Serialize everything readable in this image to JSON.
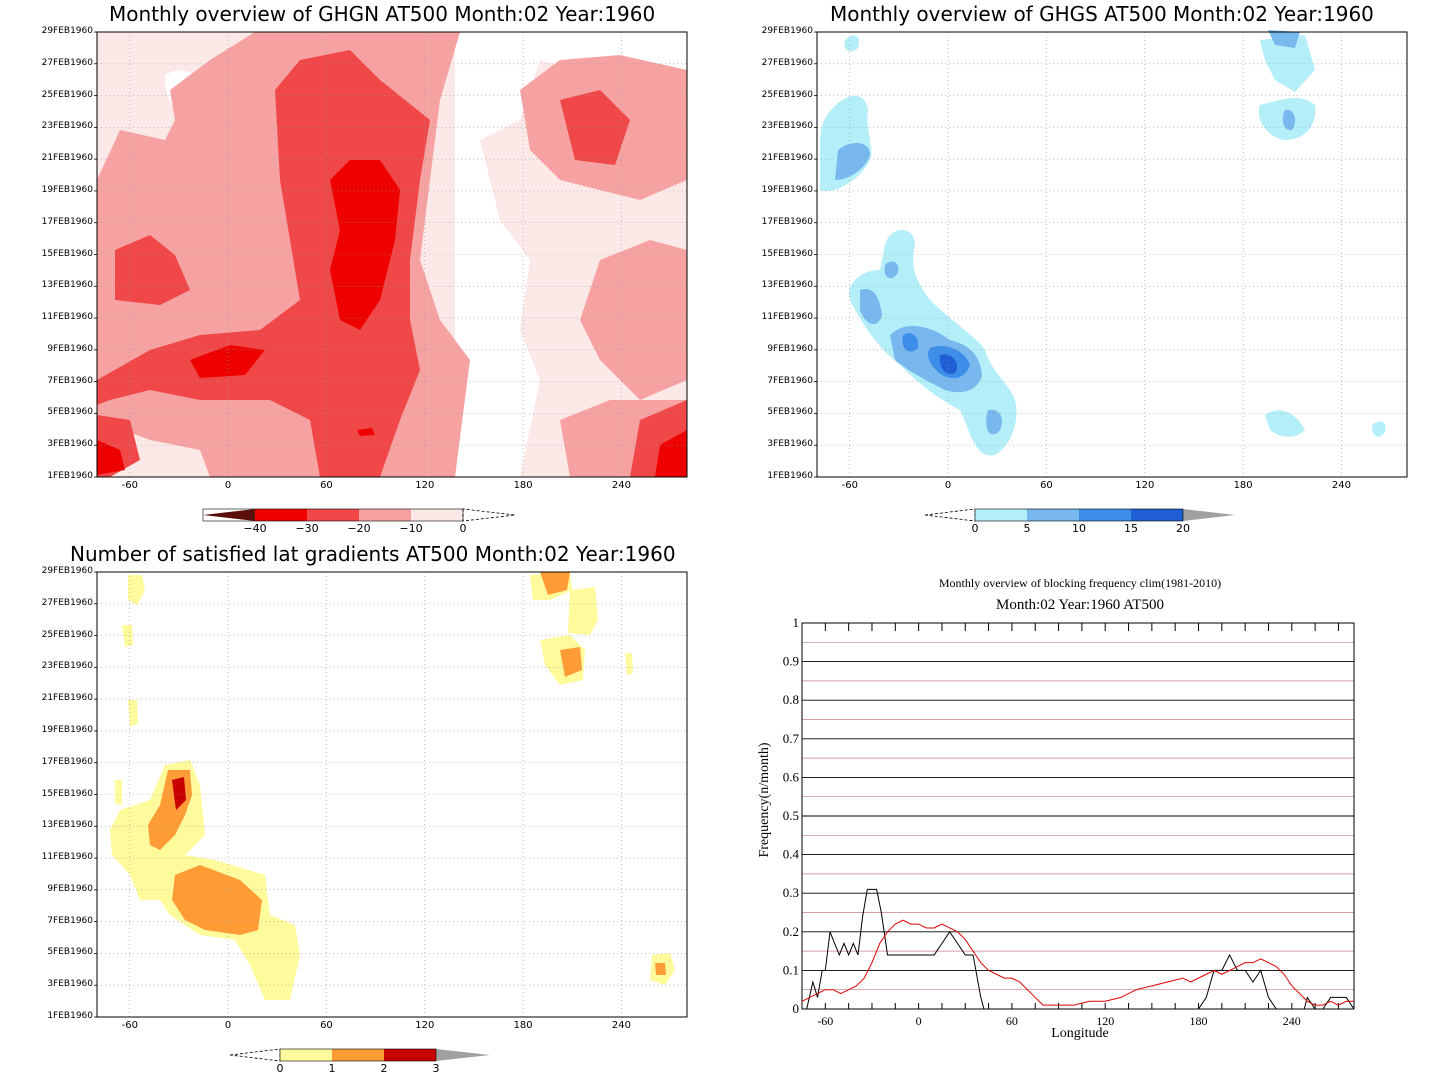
{
  "panels": {
    "ghgn": {
      "title": "Monthly overview of GHGN AT500 Month:02 Year:1960",
      "colorbar_labels": [
        "−40",
        "−30",
        "−20",
        "−10",
        "0"
      ],
      "colors": [
        "#5a0f0a",
        "#ee0000",
        "#f04848",
        "#f7a2a2",
        "#fde8e8"
      ]
    },
    "ghgs": {
      "title": "Monthly overview of GHGS AT500 Month:02 Year:1960",
      "colorbar_labels": [
        "0",
        "5",
        "10",
        "15",
        "20"
      ],
      "colors": [
        "#b4eef8",
        "#78b8ee",
        "#3c8ee8",
        "#1f5ed4",
        "#a0a0a0"
      ]
    },
    "gradients": {
      "title": "Number of satisfied lat gradients AT500 Month:02 Year:1960",
      "colorbar_labels": [
        "0",
        "1",
        "2",
        "3"
      ],
      "colors": [
        "#fffa9c",
        "#ff9c36",
        "#c80000",
        "#a0a0a0"
      ]
    },
    "frequency": {
      "title": "Monthly overview of blocking frequency clim(1981-2010)",
      "subtitle": "Month:02 Year:1960  AT500",
      "xlabel": "Longitude",
      "ylabel": "Frequency(n/month)"
    }
  },
  "date_ticks": [
    "1FEB1960",
    "3FEB1960",
    "5FEB1960",
    "7FEB1960",
    "9FEB1960",
    "11FEB1960",
    "13FEB1960",
    "15FEB1960",
    "17FEB1960",
    "19FEB1960",
    "21FEB1960",
    "23FEB1960",
    "25FEB1960",
    "27FEB1960",
    "29FEB1960"
  ],
  "lon_ticks": [
    "-60",
    "0",
    "60",
    "120",
    "180",
    "240"
  ],
  "chart_data": [
    {
      "type": "heatmap",
      "title": "Monthly overview of GHGN AT500 Month:02 Year:1960",
      "xlim": [
        -80,
        280
      ],
      "ylim": [
        "1FEB1960",
        "29FEB1960"
      ],
      "legend": [
        "-40",
        "-30",
        "-20",
        "-10",
        "0"
      ]
    },
    {
      "type": "heatmap",
      "title": "Monthly overview of GHGS AT500 Month:02 Year:1960",
      "xlim": [
        -80,
        280
      ],
      "ylim": [
        "1FEB1960",
        "29FEB1960"
      ],
      "legend": [
        "0",
        "5",
        "10",
        "15",
        "20"
      ]
    },
    {
      "type": "heatmap",
      "title": "Number of satisfied lat gradients AT500 Month:02 Year:1960",
      "xlim": [
        -80,
        280
      ],
      "ylim": [
        "1FEB1960",
        "29FEB1960"
      ],
      "legend": [
        "0",
        "1",
        "2",
        "3"
      ]
    },
    {
      "type": "line",
      "title": "Monthly overview of blocking frequency clim(1981-2010)",
      "subtitle": "Month:02 Year:1960  AT500",
      "xlabel": "Longitude",
      "ylabel": "Frequency(n/month)",
      "xlim": [
        -75,
        280
      ],
      "ylim": [
        0,
        1
      ],
      "yticks": [
        "0",
        "0.1",
        "0.2",
        "0.3",
        "0.4",
        "0.5",
        "0.6",
        "0.7",
        "0.8",
        "0.9",
        "1"
      ],
      "xticks": [
        "-60",
        "0",
        "60",
        "120",
        "180",
        "240"
      ],
      "series": [
        {
          "color": "#000000",
          "x": [
            -75,
            -72,
            -68,
            -65,
            -62,
            -60,
            -57,
            -54,
            -51,
            -48,
            -45,
            -42,
            -39,
            -36,
            -33,
            -30,
            -27,
            -24,
            -20,
            -15,
            -10,
            -5,
            0,
            5,
            10,
            15,
            20,
            25,
            30,
            35,
            40,
            42,
            45,
            50,
            60,
            70,
            100,
            150,
            170,
            180,
            185,
            190,
            195,
            200,
            205,
            210,
            215,
            220,
            225,
            230,
            235,
            240,
            245,
            248,
            250,
            255,
            260,
            265,
            270,
            275,
            280
          ],
          "values": [
            0,
            0,
            0.07,
            0.03,
            0.1,
            0.1,
            0.2,
            0.17,
            0.14,
            0.17,
            0.14,
            0.17,
            0.14,
            0.24,
            0.31,
            0.31,
            0.31,
            0.25,
            0.14,
            0.14,
            0.14,
            0.14,
            0.14,
            0.14,
            0.14,
            0.17,
            0.2,
            0.17,
            0.14,
            0.14,
            0.03,
            0,
            0,
            0,
            0,
            0,
            0,
            0,
            0,
            0,
            0.03,
            0.1,
            0.1,
            0.14,
            0.1,
            0.1,
            0.07,
            0.1,
            0.03,
            0,
            0,
            0,
            0,
            0,
            0.03,
            0,
            0,
            0.03,
            0.03,
            0.03,
            0
          ],
          "name": ""
        },
        {
          "color": "#dd0000",
          "x": [
            -75,
            -70,
            -65,
            -60,
            -55,
            -50,
            -45,
            -40,
            -35,
            -30,
            -25,
            -20,
            -15,
            -10,
            -5,
            0,
            5,
            10,
            15,
            20,
            25,
            30,
            35,
            40,
            45,
            50,
            55,
            60,
            65,
            70,
            75,
            80,
            90,
            100,
            110,
            120,
            130,
            140,
            150,
            160,
            170,
            175,
            180,
            185,
            190,
            195,
            200,
            205,
            210,
            215,
            220,
            225,
            230,
            235,
            240,
            245,
            250,
            255,
            260,
            265,
            270,
            275,
            280
          ],
          "values": [
            0.02,
            0.03,
            0.04,
            0.05,
            0.05,
            0.04,
            0.05,
            0.06,
            0.08,
            0.12,
            0.17,
            0.2,
            0.22,
            0.23,
            0.22,
            0.22,
            0.21,
            0.21,
            0.22,
            0.21,
            0.2,
            0.18,
            0.15,
            0.12,
            0.1,
            0.09,
            0.08,
            0.08,
            0.07,
            0.05,
            0.03,
            0.01,
            0.01,
            0.01,
            0.02,
            0.02,
            0.03,
            0.05,
            0.06,
            0.07,
            0.08,
            0.07,
            0.08,
            0.09,
            0.1,
            0.09,
            0.1,
            0.11,
            0.12,
            0.12,
            0.13,
            0.12,
            0.11,
            0.09,
            0.06,
            0.04,
            0.02,
            0.01,
            0.01,
            0.02,
            0.01,
            0.02,
            0.02
          ],
          "name": ""
        }
      ]
    }
  ]
}
